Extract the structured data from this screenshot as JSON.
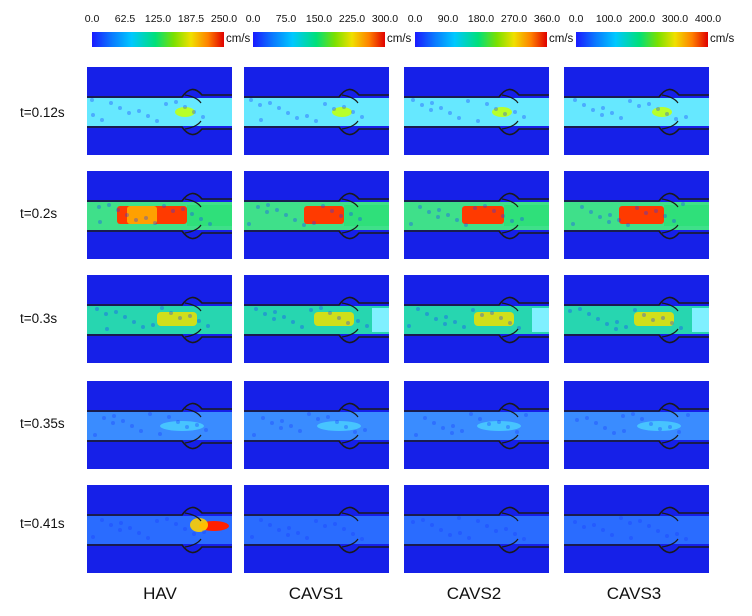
{
  "colorbars": [
    {
      "ticks": [
        "0.0",
        "62.5",
        "125.0",
        "187.5",
        "250.0"
      ],
      "unit": "cm/s"
    },
    {
      "ticks": [
        "0.0",
        "75.0",
        "150.0",
        "225.0",
        "300.0"
      ],
      "unit": "cm/s"
    },
    {
      "ticks": [
        "0.0",
        "90.0",
        "180.0",
        "270.0",
        "360.0"
      ],
      "unit": "cm/s"
    },
    {
      "ticks": [
        "0.0",
        "100.0",
        "200.0",
        "300.0",
        "400.0"
      ],
      "unit": "cm/s"
    }
  ],
  "columns": [
    "HAV",
    "CAVS1",
    "CAVS2",
    "CAVS3"
  ],
  "rows": [
    "t=0.12s",
    "t=0.2s",
    "t=0.3s",
    "t=0.35s",
    "t=0.41s"
  ]
}
